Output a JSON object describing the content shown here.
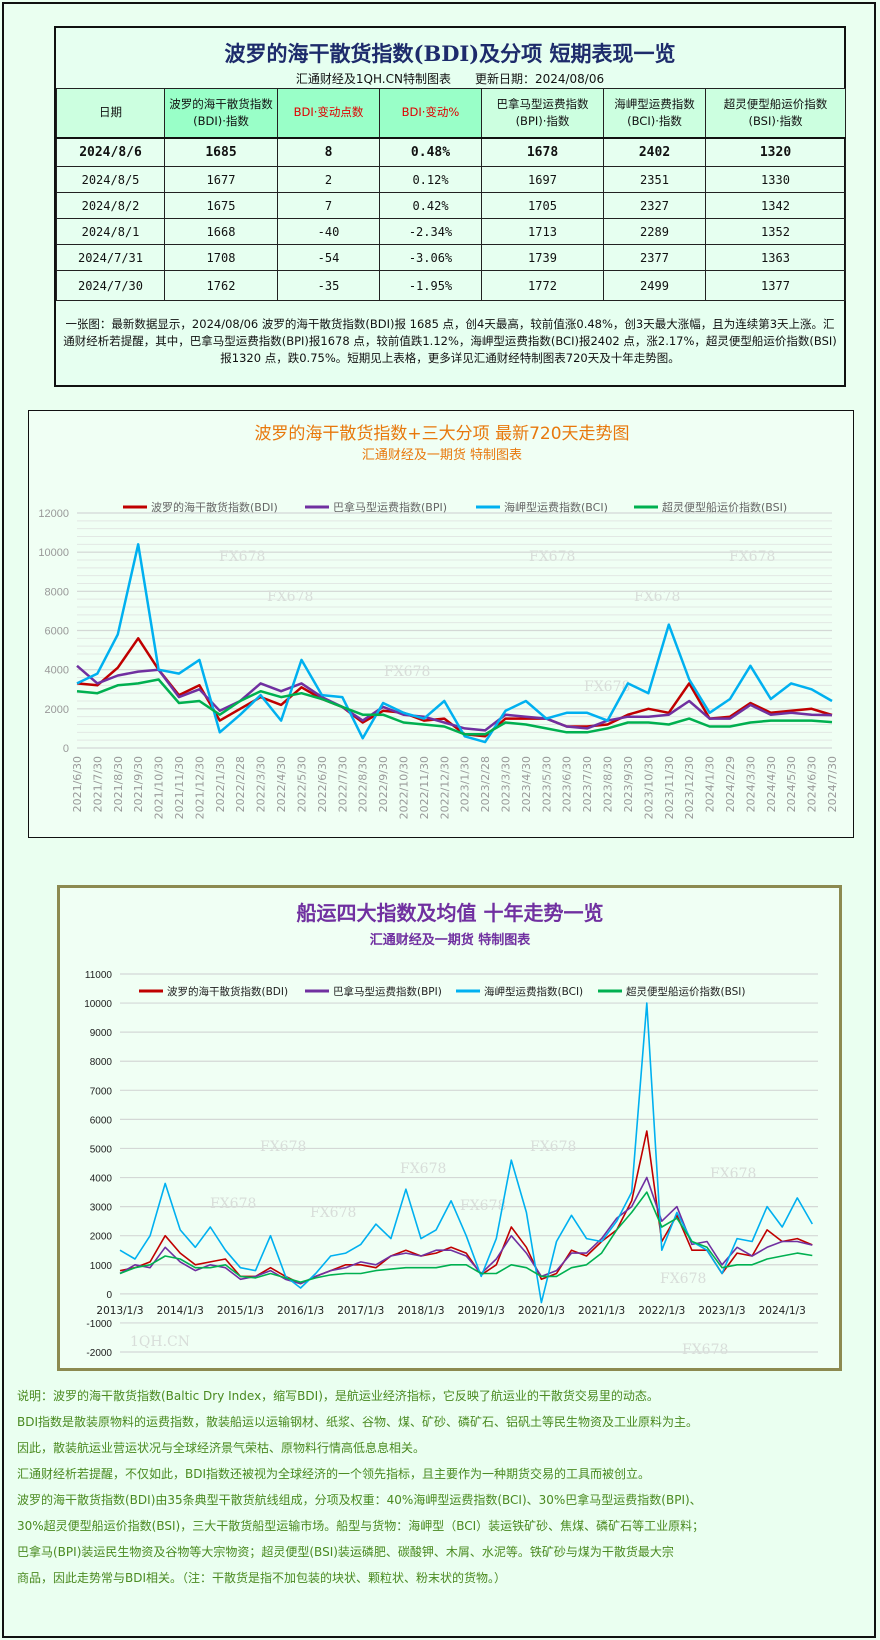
{
  "table": {
    "title": "波罗的海干散货指数(BDI)及分项 短期表现一览",
    "subtitle": "汇通财经及1QH.CN特制图表　　更新日期：2024/08/06",
    "headers": [
      "日期",
      "波罗的海干散货指数\n(BDI)·指数",
      "BDI·变动点数",
      "BDI·变动%",
      "巴拿马型运费指数\n(BPI)·指数",
      "海岬型运费指数\n(BCI)·指数",
      "超灵便型船运价指数\n(BSI)·指数"
    ],
    "rows": [
      [
        "2024/8/6",
        "1685",
        "8",
        "0.48%",
        "1678",
        "2402",
        "1320"
      ],
      [
        "2024/8/5",
        "1677",
        "2",
        "0.12%",
        "1697",
        "2351",
        "1330"
      ],
      [
        "2024/8/2",
        "1675",
        "7",
        "0.42%",
        "1705",
        "2327",
        "1342"
      ],
      [
        "2024/8/1",
        "1668",
        "-40",
        "-2.34%",
        "1713",
        "2289",
        "1352"
      ],
      [
        "2024/7/31",
        "1708",
        "-54",
        "-3.06%",
        "1739",
        "2377",
        "1363"
      ],
      [
        "2024/7/30",
        "1762",
        "-35",
        "-1.95%",
        "1772",
        "2499",
        "1377"
      ]
    ],
    "summary": "一张图：最新数据显示，2024/08/06 波罗的海干散货指数(BDI)报 1685 点，创4天最高，较前值涨0.48%，创3天最大涨幅，且为连续第3天上涨。汇通财经析若提醒，其中，巴拿马型运费指数(BPI)报1678 点，较前值跌1.12%，海岬型运费指数(BCI)报2402 点，涨2.17%，超灵便型船运价指数(BSI)报1320 点，跌0.75%。短期见上表格，更多详见汇通财经特制图表720天及十年走势图。"
  },
  "colors": {
    "BDI": "#c00000",
    "BPI": "#7030a0",
    "BCI": "#00b0f0",
    "BSI": "#00b050"
  },
  "chart_data": [
    {
      "type": "line",
      "title": "波罗的海干散货指数+三大分项 最新720天走势图",
      "subtitle": "汇通财经及一期货 特制图表",
      "ylim": [
        0,
        12000
      ],
      "yticks": [
        "0",
        "2000",
        "4000",
        "6000",
        "8000",
        "10000",
        "12000"
      ],
      "legend_position": "top",
      "watermarks": [
        "FX678",
        "FX678",
        "FX678",
        "FX678",
        "FX678",
        "FX678",
        "FX678"
      ],
      "categories": [
        "2021/6/30",
        "2021/7/30",
        "2021/8/30",
        "2021/9/30",
        "2021/10/30",
        "2021/11/30",
        "2021/12/30",
        "2022/1/30",
        "2022/2/28",
        "2022/3/30",
        "2022/4/30",
        "2022/5/30",
        "2022/6/30",
        "2022/7/30",
        "2022/8/30",
        "2022/9/30",
        "2022/10/30",
        "2022/11/30",
        "2022/12/30",
        "2023/1/30",
        "2023/2/28",
        "2023/3/30",
        "2023/4/30",
        "2023/5/30",
        "2023/6/30",
        "2023/7/30",
        "2023/8/30",
        "2023/9/30",
        "2023/10/30",
        "2023/11/30",
        "2023/12/30",
        "2024/1/30",
        "2024/2/29",
        "2024/3/30",
        "2024/4/30",
        "2024/5/30",
        "2024/6/30",
        "2024/7/30"
      ],
      "series": [
        {
          "key": "BDI",
          "name": "波罗的海干散货指数(BDI)",
          "values": [
            3300,
            3200,
            4100,
            5600,
            4000,
            2700,
            3200,
            1400,
            2000,
            2600,
            2200,
            3100,
            2500,
            2100,
            1300,
            1900,
            1800,
            1400,
            1500,
            700,
            600,
            1500,
            1500,
            1500,
            1100,
            1100,
            1200,
            1700,
            2000,
            1800,
            3300,
            1500,
            1600,
            2300,
            1800,
            1900,
            2000,
            1685
          ]
        },
        {
          "key": "BPI",
          "name": "巴拿马型运费指数(BPI)",
          "values": [
            4200,
            3300,
            3700,
            3900,
            4000,
            2600,
            3000,
            1900,
            2400,
            3300,
            2900,
            3300,
            2600,
            2100,
            1400,
            2100,
            1700,
            1600,
            1300,
            1000,
            900,
            1700,
            1600,
            1500,
            1100,
            1000,
            1400,
            1600,
            1600,
            1700,
            2400,
            1500,
            1500,
            2200,
            1700,
            1800,
            1700,
            1678
          ]
        },
        {
          "key": "BCI",
          "name": "海岬型运费指数(BCI)",
          "values": [
            3300,
            3800,
            5800,
            10400,
            4000,
            3800,
            4500,
            800,
            1700,
            2700,
            1400,
            4500,
            2700,
            2600,
            500,
            2300,
            1800,
            1500,
            2400,
            600,
            300,
            1900,
            2400,
            1500,
            1800,
            1800,
            1400,
            3300,
            2800,
            6300,
            3500,
            1800,
            2500,
            4200,
            2500,
            3300,
            3000,
            2402
          ]
        },
        {
          "key": "BSI",
          "name": "超灵便型船运价指数(BSI)",
          "values": [
            2900,
            2800,
            3200,
            3300,
            3500,
            2300,
            2400,
            1700,
            2400,
            2900,
            2600,
            2800,
            2500,
            2100,
            1700,
            1700,
            1300,
            1200,
            1100,
            700,
            700,
            1300,
            1200,
            1000,
            800,
            800,
            1000,
            1300,
            1300,
            1200,
            1500,
            1100,
            1100,
            1300,
            1400,
            1400,
            1400,
            1320
          ]
        }
      ]
    },
    {
      "type": "line",
      "title": "船运四大指数及均值 十年走势一览",
      "subtitle": "汇通财经及一期货 特制图表",
      "ylim": [
        -2000,
        11000
      ],
      "yticks": [
        "-2000",
        "-1000",
        "0",
        "1000",
        "2000",
        "3000",
        "4000",
        "5000",
        "6000",
        "7000",
        "8000",
        "9000",
        "10000",
        "11000"
      ],
      "xticks": [
        "2013/1/3",
        "2014/1/3",
        "2015/1/3",
        "2016/1/3",
        "2017/1/3",
        "2018/1/3",
        "2019/1/3",
        "2020/1/3",
        "2021/1/3",
        "2022/1/3",
        "2023/1/3",
        "2024/1/3"
      ],
      "legend_position": "top",
      "watermarks": [
        "FX678",
        "FX678",
        "FX678",
        "FX678",
        "FX678",
        "FX678",
        "FX678",
        "FX678",
        "FX678",
        "1QH.CN"
      ],
      "x_unit": "quarters since 2013/1/3",
      "series": [
        {
          "key": "BDI",
          "name": "波罗的海干散货指数(BDI)",
          "values": [
            800,
            900,
            1100,
            2000,
            1400,
            1000,
            1100,
            1200,
            600,
            600,
            900,
            600,
            350,
            600,
            800,
            1000,
            1000,
            900,
            1300,
            1500,
            1300,
            1400,
            1600,
            1400,
            650,
            1000,
            2300,
            1600,
            500,
            700,
            1500,
            1300,
            1800,
            2200,
            3200,
            5600,
            1800,
            2700,
            1500,
            1500,
            700,
            1400,
            1300,
            2200,
            1800,
            1900,
            1685
          ]
        },
        {
          "key": "BPI",
          "name": "巴拿马型运费指数(BPI)",
          "values": [
            700,
            1000,
            900,
            1600,
            1100,
            800,
            1000,
            900,
            500,
            600,
            800,
            500,
            350,
            600,
            800,
            900,
            1100,
            1000,
            1300,
            1400,
            1300,
            1500,
            1500,
            1300,
            700,
            1200,
            2000,
            1400,
            600,
            800,
            1400,
            1400,
            1900,
            2600,
            3000,
            4000,
            2500,
            3000,
            1700,
            1800,
            1000,
            1600,
            1300,
            1600,
            1800,
            1800,
            1678
          ]
        },
        {
          "key": "BCI",
          "name": "海岬型运费指数(BCI)",
          "values": [
            1500,
            1200,
            2000,
            3800,
            2200,
            1600,
            2300,
            1500,
            900,
            800,
            2000,
            600,
            200,
            700,
            1300,
            1400,
            1700,
            2400,
            1900,
            3600,
            1900,
            2200,
            3200,
            2000,
            600,
            1900,
            4600,
            2800,
            -300,
            1800,
            2700,
            1900,
            1800,
            2500,
            3500,
            10000,
            1500,
            2800,
            1800,
            1500,
            700,
            1900,
            1800,
            3000,
            2300,
            3300,
            2402
          ]
        },
        {
          "key": "BSI",
          "name": "超灵便型船运价指数(BSI)",
          "values": [
            700,
            900,
            1000,
            1300,
            1200,
            900,
            900,
            1000,
            600,
            550,
            700,
            550,
            400,
            550,
            650,
            700,
            700,
            800,
            850,
            900,
            900,
            900,
            1000,
            1000,
            700,
            700,
            1000,
            900,
            600,
            600,
            900,
            1000,
            1400,
            2200,
            2800,
            3500,
            2300,
            2600,
            1800,
            1600,
            900,
            1000,
            1000,
            1200,
            1300,
            1400,
            1320
          ]
        }
      ]
    }
  ],
  "notes": [
    "说明：波罗的海干散货指数(Baltic Dry Index，缩写BDI)，是航运业经济指标，它反映了航运业的干散货交易里的动态。",
    "BDI指数是散装原物料的运费指数，散装船运以运输钢材、纸浆、谷物、煤、矿砂、磷矿石、铝矾土等民生物资及工业原料为主。",
    "因此，散装航运业营运状况与全球经济景气荣枯、原物料行情高低息息相关。",
    "汇通财经析若提醒，不仅如此，BDI指数还被视为全球经济的一个领先指标，且主要作为一种期货交易的工具而被创立。",
    "波罗的海干散货指数(BDI)由35条典型干散货航线组成，分项及权重：40%海岬型运费指数(BCI)、30%巴拿马型运费指数(BPI)、",
    "30%超灵便型船运价指数(BSI)，三大干散货船型运输市场。船型与货物：海岬型（BCI）装运铁矿砂、焦煤、磷矿石等工业原料；",
    "巴拿马(BPI)装运民生物资及谷物等大宗物资；超灵便型(BSI)装运磷肥、碳酸钾、木屑、水泥等。铁矿砂与煤为干散货最大宗",
    "商品，因此走势常与BDI相关。（注：干散货是指不加包装的块状、颗粒状、粉末状的货物。）"
  ]
}
